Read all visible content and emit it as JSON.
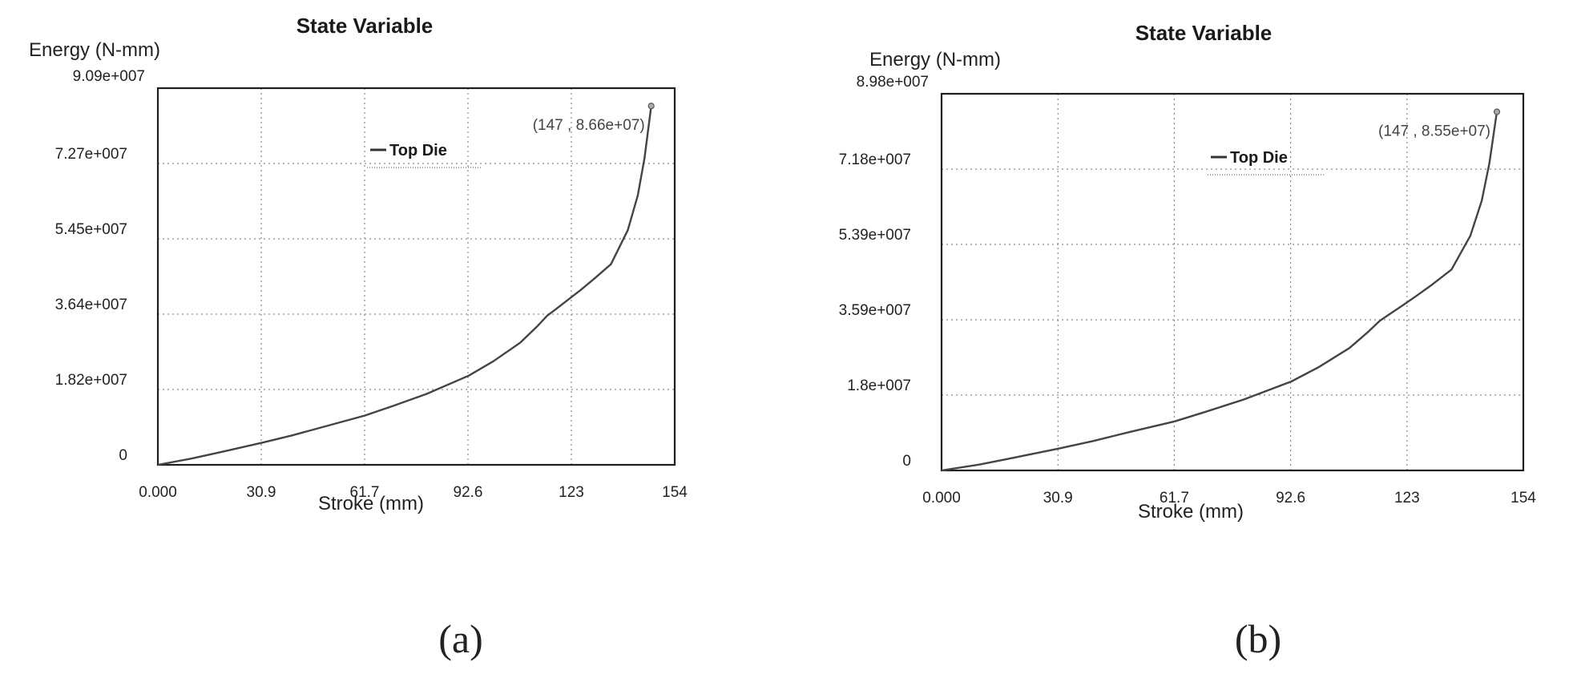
{
  "chart_data": [
    {
      "type": "line",
      "title": "State Variable",
      "ylabel": "Energy (N-mm)",
      "xlabel": "Stroke (mm)",
      "xlim": [
        0,
        154
      ],
      "ylim": [
        0,
        90900000
      ],
      "x_ticks": [
        "0.000",
        "30.9",
        "61.7",
        "92.6",
        "123",
        "154"
      ],
      "y_ticks": [
        "0",
        "1.82e+007",
        "3.64e+007",
        "5.45e+007",
        "7.27e+007",
        "9.09e+007"
      ],
      "grid": true,
      "legend": "top-center",
      "series": [
        {
          "name": "Top Die",
          "x": [
            0,
            10,
            20,
            30.9,
            40,
            50,
            61.7,
            70,
            80,
            92.6,
            100,
            108,
            113,
            116,
            118,
            122,
            126,
            130,
            135,
            140,
            143,
            145,
            147
          ],
          "y": [
            0,
            1500000,
            3300000,
            5300000,
            7100000,
            9300000,
            11900000,
            14200000,
            17100000,
            21500000,
            25000000,
            29500000,
            33400000,
            36000000,
            37200000,
            39700000,
            42200000,
            44900000,
            48400000,
            56600000,
            65000000,
            74000000,
            86600000
          ]
        }
      ],
      "annotation": "(147 , 8.66e+07)",
      "caption": "(a)"
    },
    {
      "type": "line",
      "title": "State Variable",
      "ylabel": "Energy (N-mm)",
      "xlabel": "Stroke (mm)",
      "xlim": [
        0,
        154
      ],
      "ylim": [
        0,
        89800000
      ],
      "x_ticks": [
        "0.000",
        "30.9",
        "61.7",
        "92.6",
        "123",
        "154"
      ],
      "y_ticks": [
        "0",
        "1.8e+007",
        "3.59e+007",
        "5.39e+007",
        "7.18e+007",
        "8.98e+007"
      ],
      "grid": true,
      "legend": "top-center",
      "series": [
        {
          "name": "Top Die",
          "x": [
            0,
            10,
            20,
            30.9,
            40,
            50,
            61.7,
            70,
            80,
            92.6,
            100,
            108,
            113,
            116,
            118,
            122,
            126,
            130,
            135,
            140,
            143,
            145,
            147
          ],
          "y": [
            0,
            1400000,
            3200000,
            5200000,
            7000000,
            9200000,
            11700000,
            14000000,
            16900000,
            21200000,
            24700000,
            29200000,
            33100000,
            35700000,
            36900000,
            39300000,
            41800000,
            44400000,
            47900000,
            56000000,
            64300000,
            73200000,
            85500000
          ]
        }
      ],
      "annotation": "(147 , 8.55e+07)",
      "caption": "(b)"
    }
  ]
}
